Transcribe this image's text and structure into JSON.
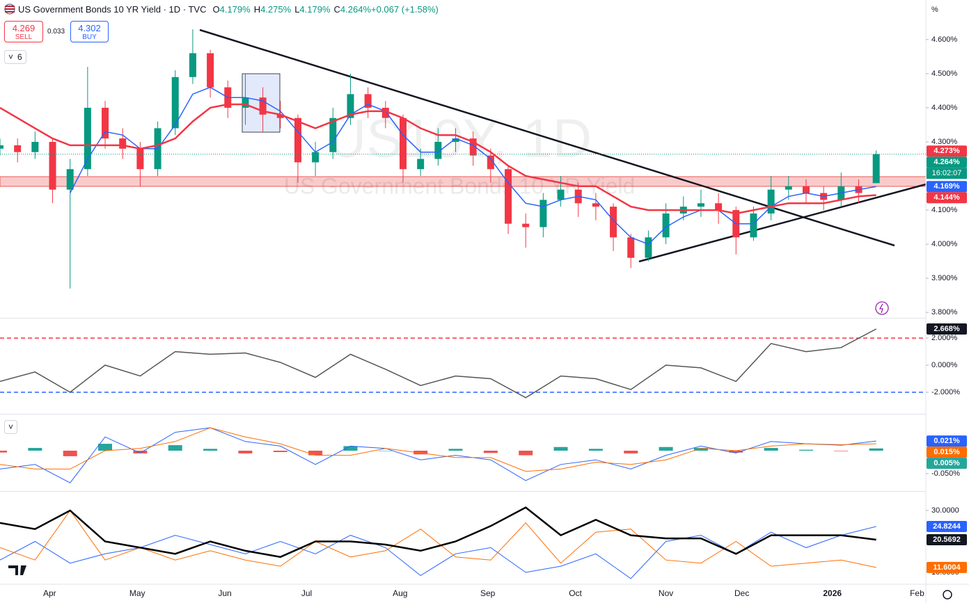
{
  "header": {
    "title": "US Government Bonds 10 YR Yield · 1D · TVC",
    "items": [
      "O",
      "4.179%",
      "H",
      "4.275%",
      "L",
      "4.179%",
      "C",
      "4.264%",
      "+0.067 (+1.58%)"
    ]
  },
  "trade": {
    "sell_price": "4.269",
    "sell": "SELL",
    "spread": "0.033",
    "buy_price": "4.302",
    "buy": "BUY"
  },
  "indicators_count": "6",
  "watermark": {
    "symbol": "US10Y, 1D",
    "name": "US Government Bonds 10 YR Yield"
  },
  "axis_unit": "%",
  "countdown": "16:02:07",
  "chart_data": [
    {
      "type": "candlestick",
      "x": [
        0,
        6,
        12,
        18,
        24,
        30,
        36,
        42,
        48,
        54,
        60,
        66,
        72,
        78,
        84,
        90,
        96,
        102,
        108,
        114,
        120,
        126,
        132,
        138,
        144,
        150,
        156,
        162,
        168,
        174,
        180,
        186,
        192,
        198,
        204,
        210,
        216,
        222,
        228,
        234,
        240,
        246,
        252,
        258,
        264,
        270,
        276,
        282,
        288,
        294,
        300
      ],
      "open": [
        4.28,
        4.29,
        4.27,
        4.3,
        4.16,
        4.22,
        4.4,
        4.31,
        4.28,
        4.22,
        4.34,
        4.49,
        4.56,
        4.46,
        4.4,
        4.43,
        4.38,
        4.37,
        4.24,
        4.27,
        4.37,
        4.44,
        4.4,
        4.37,
        4.22,
        4.25,
        4.3,
        4.31,
        4.26,
        4.22,
        4.06,
        4.05,
        4.13,
        4.16,
        4.12,
        4.11,
        4.02,
        3.96,
        4.02,
        4.09,
        4.11,
        4.12,
        4.1,
        4.02,
        4.09,
        4.16,
        4.17,
        4.15,
        4.13,
        4.17,
        4.179
      ],
      "high": [
        4.31,
        4.31,
        4.33,
        4.31,
        4.25,
        4.52,
        4.42,
        4.34,
        4.3,
        4.36,
        4.51,
        4.63,
        4.57,
        4.48,
        4.5,
        4.46,
        4.42,
        4.38,
        4.3,
        4.4,
        4.5,
        4.46,
        4.42,
        4.38,
        4.28,
        4.34,
        4.34,
        4.33,
        4.28,
        4.23,
        4.09,
        4.15,
        4.2,
        4.18,
        4.15,
        4.12,
        4.03,
        4.04,
        4.12,
        4.14,
        4.16,
        4.15,
        4.11,
        4.11,
        4.2,
        4.2,
        4.19,
        4.17,
        4.21,
        4.19,
        4.275
      ],
      "low": [
        4.26,
        4.24,
        4.25,
        4.12,
        3.87,
        4.2,
        4.28,
        4.25,
        4.17,
        4.2,
        4.32,
        4.47,
        4.43,
        4.37,
        4.35,
        4.33,
        4.34,
        4.18,
        4.2,
        4.25,
        4.35,
        4.37,
        4.34,
        4.18,
        4.2,
        4.23,
        4.27,
        4.23,
        4.18,
        4.03,
        3.99,
        4.02,
        4.11,
        4.08,
        4.07,
        3.98,
        3.93,
        3.95,
        4.0,
        4.07,
        4.08,
        4.06,
        3.97,
        4.01,
        4.07,
        4.13,
        4.12,
        4.1,
        4.11,
        4.12,
        4.179
      ],
      "close": [
        4.29,
        4.27,
        4.3,
        4.16,
        4.22,
        4.4,
        4.31,
        4.28,
        4.22,
        4.34,
        4.49,
        4.56,
        4.46,
        4.4,
        4.43,
        4.38,
        4.37,
        4.24,
        4.27,
        4.37,
        4.44,
        4.4,
        4.37,
        4.22,
        4.25,
        4.3,
        4.31,
        4.26,
        4.22,
        4.06,
        4.05,
        4.13,
        4.16,
        4.12,
        4.11,
        4.02,
        3.96,
        4.02,
        4.09,
        4.11,
        4.12,
        4.1,
        4.02,
        4.09,
        4.16,
        4.17,
        4.15,
        4.13,
        4.17,
        4.15,
        4.264
      ],
      "up_color": "#089981",
      "down_color": "#f23645",
      "series": [
        {
          "color": "#2962ff",
          "width": 1.5,
          "values": [
            null,
            null,
            null,
            null,
            4.15,
            4.25,
            4.33,
            4.32,
            4.28,
            4.28,
            4.35,
            4.44,
            4.46,
            4.43,
            4.43,
            4.42,
            4.39,
            4.33,
            4.27,
            4.3,
            4.38,
            4.41,
            4.39,
            4.32,
            4.27,
            4.27,
            4.31,
            4.29,
            4.25,
            4.18,
            4.12,
            4.11,
            4.13,
            4.14,
            4.13,
            4.07,
            4.02,
            4.0,
            4.05,
            4.08,
            4.1,
            4.1,
            4.06,
            4.06,
            4.11,
            4.14,
            4.15,
            4.14,
            4.15,
            4.16,
            4.169
          ]
        },
        {
          "color": "#f23645",
          "width": 2.5,
          "values": [
            4.4,
            4.37,
            4.34,
            4.31,
            4.29,
            4.29,
            4.29,
            4.29,
            4.28,
            4.29,
            4.31,
            4.36,
            4.4,
            4.41,
            4.41,
            4.39,
            4.38,
            4.36,
            4.34,
            4.36,
            4.38,
            4.39,
            4.39,
            4.37,
            4.34,
            4.32,
            4.32,
            4.3,
            4.27,
            4.23,
            4.2,
            4.19,
            4.18,
            4.17,
            4.17,
            4.14,
            4.11,
            4.1,
            4.1,
            4.1,
            4.1,
            4.1,
            4.09,
            4.1,
            4.11,
            4.12,
            4.12,
            4.12,
            4.13,
            4.14,
            4.144
          ]
        }
      ],
      "xlim": [
        0,
        317
      ],
      "xticks": [
        {
          "value": 17,
          "label": "Apr"
        },
        {
          "value": 47,
          "label": "May"
        },
        {
          "value": 77,
          "label": "Jun"
        },
        {
          "value": 105,
          "label": "Jul"
        },
        {
          "value": 137,
          "label": "Aug"
        },
        {
          "value": 167,
          "label": "Sep"
        },
        {
          "value": 197,
          "label": "Oct"
        },
        {
          "value": 228,
          "label": "Nov"
        },
        {
          "value": 254,
          "label": "Dec"
        },
        {
          "value": 285,
          "label": "2026"
        },
        {
          "value": 314,
          "label": "Feb"
        }
      ],
      "ylim": [
        3.784,
        4.716
      ],
      "yticks": [
        {
          "value": 3.8,
          "label": "3.800%"
        },
        {
          "value": 3.9,
          "label": "3.900%"
        },
        {
          "value": 4.0,
          "label": "4.000%"
        },
        {
          "value": 4.1,
          "label": "4.100%"
        },
        {
          "value": 4.2,
          "label": "4.200%"
        },
        {
          "value": 4.3,
          "label": "4.300%"
        },
        {
          "value": 4.4,
          "label": "4.400%"
        },
        {
          "value": 4.5,
          "label": "4.500%"
        },
        {
          "value": 4.6,
          "label": "4.600%"
        }
      ],
      "price_line": true,
      "tags": [
        {
          "value": 4.273,
          "label": "4.273%",
          "color": "#f23645"
        },
        {
          "value": 4.264,
          "label": "4.264%",
          "color": "#089981"
        },
        {
          "value": 4.169,
          "label": "4.169%",
          "color": "#2962ff"
        },
        {
          "value": 4.144,
          "label": "4.144%",
          "color": "#f23645"
        }
      ]
    },
    {
      "type": "line",
      "x": [
        0,
        12,
        24,
        36,
        48,
        60,
        72,
        84,
        96,
        108,
        120,
        132,
        144,
        156,
        168,
        180,
        192,
        204,
        216,
        228,
        240,
        252,
        264,
        276,
        288,
        300
      ],
      "series": [
        {
          "color": "#555555",
          "width": 1.5,
          "values": [
            -1.2,
            -0.5,
            -2.0,
            0.0,
            -0.8,
            1.0,
            0.8,
            0.9,
            0.2,
            -0.9,
            0.8,
            -0.3,
            -1.5,
            -0.8,
            -1.0,
            -2.4,
            -0.8,
            -1.0,
            -1.8,
            0.0,
            -0.2,
            -1.2,
            1.6,
            1.0,
            1.3,
            2.668
          ]
        }
      ],
      "ylim": [
        -3.59,
        3.44
      ],
      "yticks": [
        {
          "value": 2,
          "label": "2.000%"
        },
        {
          "value": 0,
          "label": "0.000%"
        },
        {
          "value": -2,
          "label": "-2.000%"
        }
      ],
      "bands": [
        {
          "value": 2,
          "color": "#f23645"
        },
        {
          "value": -2,
          "color": "#2962ff"
        }
      ],
      "tags": [
        {
          "value": 2.668,
          "label": "2.668%",
          "color": "#131722"
        }
      ]
    },
    {
      "type": "macd",
      "x": [
        0,
        12,
        24,
        36,
        48,
        60,
        72,
        84,
        96,
        108,
        120,
        132,
        144,
        156,
        168,
        180,
        192,
        204,
        216,
        228,
        240,
        252,
        264,
        276,
        288,
        300
      ],
      "histogram": {
        "up_color": "#26a69a",
        "down_color": "#ef5350",
        "values": [
          -0.004,
          0.006,
          -0.012,
          0.015,
          -0.006,
          0.012,
          0.004,
          -0.006,
          -0.003,
          -0.01,
          0.01,
          0.0,
          -0.008,
          0.004,
          -0.005,
          -0.01,
          0.008,
          0.004,
          -0.006,
          0.008,
          0.006,
          -0.004,
          0.006,
          0.002,
          -0.001,
          0.005
        ]
      },
      "series": [
        {
          "color": "#2962ff",
          "width": 1,
          "values": [
            -0.04,
            -0.03,
            -0.07,
            0.03,
            -0.005,
            0.04,
            0.05,
            0.02,
            0.01,
            -0.03,
            0.01,
            0.005,
            -0.02,
            -0.01,
            -0.02,
            -0.065,
            -0.03,
            -0.02,
            -0.04,
            -0.01,
            0.01,
            -0.005,
            0.02,
            0.015,
            0.012,
            0.021
          ]
        },
        {
          "color": "#ff6d00",
          "width": 1,
          "values": [
            -0.03,
            -0.04,
            -0.04,
            0.0,
            0.005,
            0.02,
            0.05,
            0.03,
            0.015,
            -0.01,
            -0.01,
            0.005,
            -0.005,
            -0.015,
            -0.015,
            -0.045,
            -0.04,
            -0.025,
            -0.03,
            -0.02,
            0.005,
            0.0,
            0.01,
            0.015,
            0.013,
            0.015
          ]
        }
      ],
      "ylim": [
        -0.0879,
        0.0788
      ],
      "yticks": [
        {
          "value": -0.05,
          "label": "-0.050%"
        }
      ],
      "tags": [
        {
          "value": 0.021,
          "label": "0.021%",
          "color": "#2962ff"
        },
        {
          "value": 0.015,
          "label": "0.015%",
          "color": "#ff6d00"
        },
        {
          "value": 0.005,
          "label": "0.005%",
          "color": "#26a69a"
        }
      ]
    },
    {
      "type": "line",
      "x": [
        0,
        12,
        24,
        36,
        48,
        60,
        72,
        84,
        96,
        108,
        120,
        132,
        144,
        156,
        168,
        180,
        192,
        204,
        216,
        228,
        240,
        252,
        264,
        276,
        288,
        300
      ],
      "series": [
        {
          "color": "#2962ff",
          "width": 1,
          "values": [
            14,
            20,
            13,
            16,
            18,
            22,
            19,
            16,
            20,
            16,
            22,
            18,
            9,
            16,
            18,
            10,
            12,
            16,
            8,
            20,
            22,
            16,
            23,
            18,
            22,
            24.8244
          ]
        },
        {
          "color": "#ff6d00",
          "width": 1,
          "values": [
            18,
            14,
            30,
            14,
            18,
            14,
            17,
            14,
            12,
            20,
            15,
            17,
            24,
            15,
            14,
            26,
            13,
            23,
            24,
            14,
            13,
            20,
            12,
            13,
            14,
            11.6004
          ]
        },
        {
          "color": "#000000",
          "width": 2.5,
          "values": [
            26,
            24,
            30,
            20,
            18,
            16,
            20,
            17,
            15,
            20,
            20,
            19,
            17,
            20,
            25,
            31,
            22,
            27,
            22,
            21,
            21,
            16,
            22,
            22,
            22,
            20.5692
          ]
        }
      ],
      "ylim": [
        6.18,
        36.07
      ],
      "yticks": [
        {
          "value": 30,
          "label": "30.0000"
        },
        {
          "value": 10,
          "label": "10.0000"
        }
      ],
      "tags": [
        {
          "value": 24.8244,
          "label": "24.8244",
          "color": "#2962ff"
        },
        {
          "value": 20.5692,
          "label": "20.5692",
          "color": "#131722"
        },
        {
          "value": 11.6004,
          "label": "11.6004",
          "color": "#ff6d00"
        }
      ]
    }
  ]
}
